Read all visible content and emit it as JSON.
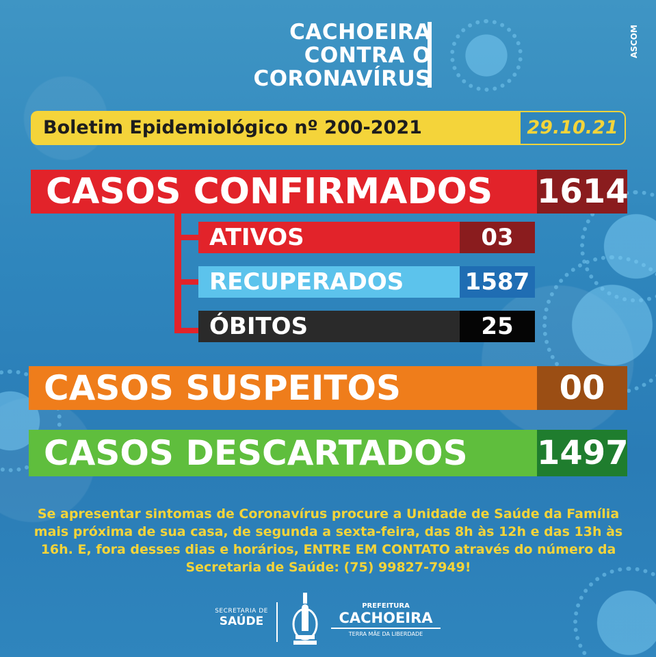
{
  "header": {
    "line1": "CACHOEIRA",
    "line2": "CONTRA O",
    "line3": "CORONAVÍRUS",
    "ascom": "ASCOM",
    "icon": "coronavirus-icon"
  },
  "bulletin": {
    "title": "Boletim Epidemiológico nº 200-2021",
    "date": "29.10.21"
  },
  "stats": {
    "confirmados": {
      "label": "CASOS CONFIRMADOS",
      "value": "1614"
    },
    "ativos": {
      "label": "ATIVOS",
      "value": "03"
    },
    "recuperados": {
      "label": "RECUPERADOS",
      "value": "1587"
    },
    "obitos": {
      "label": "ÓBITOS",
      "value": "25"
    },
    "suspeitos": {
      "label": "CASOS SUSPEITOS",
      "value": "00"
    },
    "descartados": {
      "label": "CASOS DESCARTADOS",
      "value": "1497"
    }
  },
  "notice": "Se apresentar sintomas de Coronavírus procure a Unidade de Saúde da Família mais próxima de sua casa, de segunda a sexta-feira, das 8h às 12h e das 13h às 16h. E, fora desses dias e horários, ENTRE EM CONTATO através do número da Secretaria de Saúde: (75) 99827-7949!",
  "footer": {
    "secretaria_small": "SECRETARIA DE",
    "secretaria_big": "SAÚDE",
    "prefeitura_small": "PREFEITURA",
    "prefeitura_big": "CACHOEIRA",
    "prefeitura_tagline": "TERRA MÃE DA LIBERDADE"
  },
  "colors": {
    "background": "#2f86bd",
    "yellow": "#f4d43a",
    "red": "#e2232a",
    "dark_red": "#8a1c1e",
    "light_blue": "#5cc3ec",
    "blue": "#1f6db3",
    "orange": "#ef7d1b",
    "green": "#5fbe3d",
    "dark_green": "#1f7d2e"
  }
}
